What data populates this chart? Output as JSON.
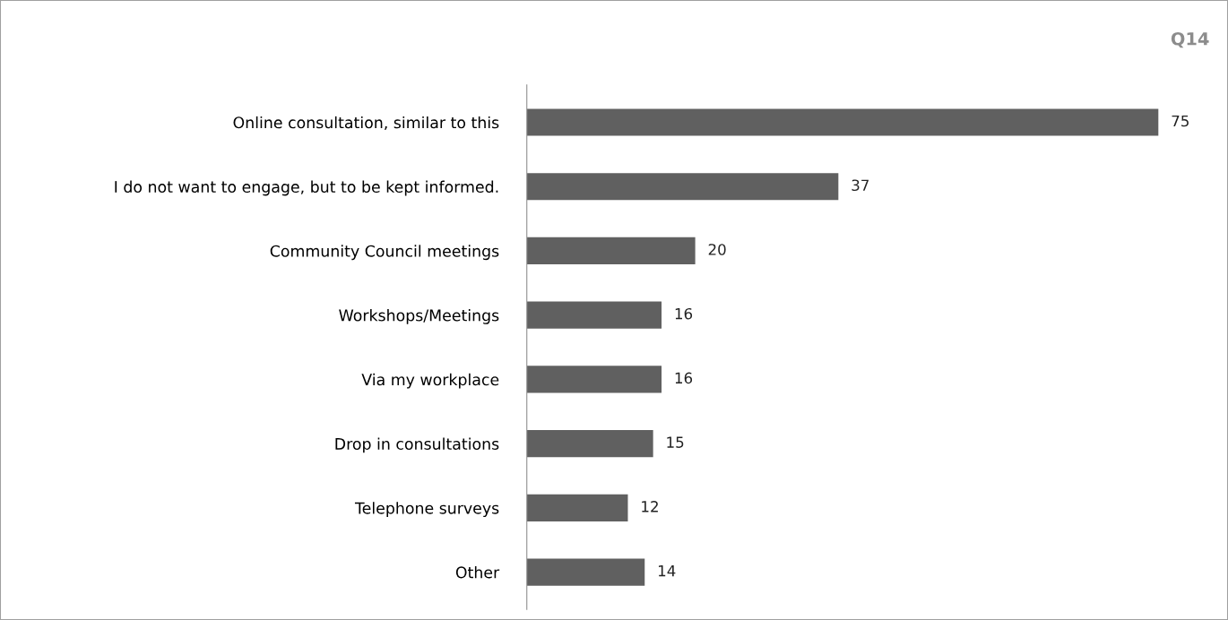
{
  "chart_data": {
    "type": "bar",
    "orientation": "horizontal",
    "title": "Q14",
    "categories": [
      "Online consultation, similar to this",
      "I do not want to engage, but to be kept informed.",
      "Community Council meetings",
      "Workshops/Meetings",
      "Via my workplace",
      "Drop in consultations",
      "Telephone surveys",
      "Other"
    ],
    "values": [
      75,
      37,
      20,
      16,
      16,
      15,
      12,
      14
    ],
    "color": "#606060",
    "data_labels": true,
    "grid": false,
    "legend": false,
    "tick_labels": "y"
  }
}
